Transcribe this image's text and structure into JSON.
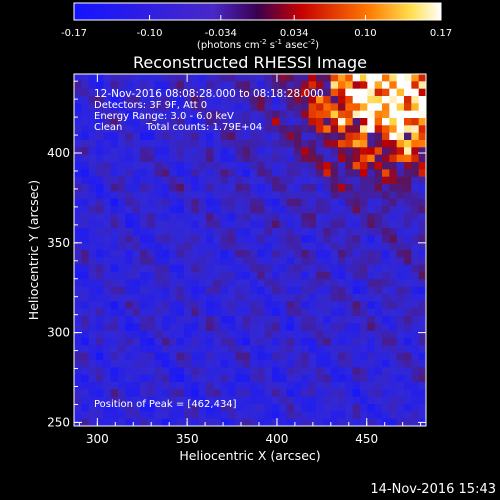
{
  "colorbar": {
    "ticks": [
      "-0.17",
      "-0.10",
      "-0.034",
      "0.034",
      "0.10",
      "0.17"
    ],
    "tick_values": [
      -0.17,
      -0.1,
      -0.034,
      0.034,
      0.1,
      0.17
    ],
    "label_prefix": "(photons cm",
    "label_sup1": "-2",
    "label_mid1": " s",
    "label_sup2": "-1",
    "label_mid2": " asec",
    "label_sup3": "-2",
    "label_suffix": ")"
  },
  "chart_data": {
    "type": "heatmap",
    "title": "Reconstructed RHESSI Image",
    "xlabel": "Heliocentric X (arcsec)",
    "ylabel": "Heliocentric Y (arcsec)",
    "xlim": [
      287,
      483
    ],
    "ylim": [
      248,
      444
    ],
    "x_ticks": [
      300,
      350,
      400,
      450
    ],
    "y_ticks": [
      250,
      300,
      350,
      400
    ],
    "colorscale_range": [
      -0.17,
      0.17
    ],
    "peak": [
      462,
      434
    ],
    "annotations": {
      "time_range": "12-Nov-2016 08:08:28.000 to 08:18:28.000",
      "detectors": "Detectors: 3F 9F, Att 0",
      "energy": "Energy Range: 3.0 - 6.0 keV",
      "method": "Clean",
      "counts": "Total counts: 1.79E+04",
      "peak_text": "Position of Peak = [462,434]"
    }
  },
  "footer": {
    "timestamp": "14-Nov-2016 15:43"
  }
}
